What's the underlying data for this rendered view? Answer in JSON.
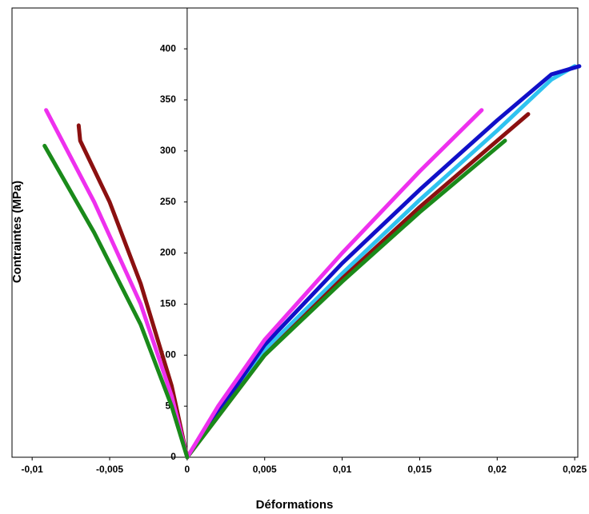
{
  "chart_data": {
    "type": "line",
    "x_label": "Déformations",
    "y_label": "Contraintes (MPa)",
    "xlim": [
      -0.0113,
      0.0252
    ],
    "ylim": [
      0,
      440
    ],
    "xticks": [
      {
        "value": -0.01,
        "label": "-0,01"
      },
      {
        "value": -0.005,
        "label": "-0,005"
      },
      0,
      {
        "value": 0.005,
        "label": "0,005"
      },
      {
        "value": 0.01,
        "label": "0,01"
      },
      {
        "value": 0.015,
        "label": "0,015"
      },
      {
        "value": 0.02,
        "label": "0,02"
      },
      {
        "value": 0.025,
        "label": "0,025"
      }
    ],
    "yticks": [
      0,
      50,
      100,
      150,
      200,
      250,
      300,
      350,
      400
    ],
    "series": [
      {
        "color": "#2fc3f0",
        "x": [
          0,
          0.005,
          0.01,
          0.015,
          0.02,
          0.0235,
          0.025
        ],
        "values": [
          0,
          105,
          180,
          252,
          320,
          370,
          383
        ]
      },
      {
        "color": "#1010c8",
        "x": [
          0,
          0.005,
          0.01,
          0.015,
          0.02,
          0.0235,
          0.0253
        ],
        "values": [
          0,
          110,
          190,
          262,
          330,
          375,
          383
        ]
      },
      {
        "color": "#8b1010",
        "x": [
          0,
          0.005,
          0.01,
          0.015,
          0.02,
          0.022
        ],
        "values": [
          0,
          100,
          175,
          245,
          310,
          336
        ]
      },
      {
        "color": "#1a8a1a",
        "x": [
          0,
          0.005,
          0.01,
          0.015,
          0.0205
        ],
        "values": [
          0,
          100,
          172,
          240,
          310
        ]
      },
      {
        "color": "#ee30ee",
        "x": [
          0,
          0.002,
          0.005,
          0.01,
          0.015,
          0.019
        ],
        "values": [
          0,
          50,
          115,
          200,
          280,
          340
        ]
      },
      {
        "color": "#8b1010",
        "x": [
          0,
          -0.001,
          -0.003,
          -0.005,
          -0.0069,
          -0.007
        ],
        "values": [
          0,
          70,
          170,
          250,
          310,
          325
        ]
      },
      {
        "color": "#ee30ee",
        "x": [
          0,
          -0.001,
          -0.003,
          -0.006,
          -0.0091
        ],
        "values": [
          0,
          60,
          150,
          250,
          340
        ]
      },
      {
        "color": "#1a8a1a",
        "x": [
          0,
          -0.001,
          -0.003,
          -0.006,
          -0.0092
        ],
        "values": [
          0,
          50,
          130,
          220,
          305
        ]
      }
    ]
  }
}
